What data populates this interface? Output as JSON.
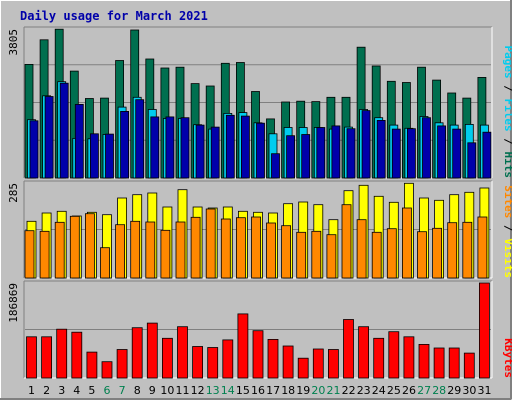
{
  "chart_data": [
    {
      "type": "bar",
      "title": "Daily usage for March 2021",
      "panel": "pages-files-hits",
      "ymax_label": "3805",
      "ylim": [
        0,
        3805
      ],
      "categories": [
        "1",
        "2",
        "3",
        "4",
        "5",
        "6",
        "7",
        "8",
        "9",
        "10",
        "11",
        "12",
        "13",
        "14",
        "15",
        "16",
        "17",
        "18",
        "19",
        "20",
        "21",
        "22",
        "23",
        "24",
        "25",
        "26",
        "27",
        "28",
        "29",
        "30",
        "31"
      ],
      "weekend_days": [
        "6",
        "7",
        "13",
        "14",
        "20",
        "21",
        "27",
        "28"
      ],
      "series": [
        {
          "name": "Hits",
          "color": "#006f4f",
          "values": [
            2900,
            3530,
            3800,
            2730,
            2030,
            2040,
            3000,
            3780,
            3040,
            2810,
            2830,
            2410,
            2350,
            2930,
            2950,
            2210,
            1510,
            1940,
            1960,
            1950,
            2060,
            2060,
            3340,
            2860,
            2470,
            2440,
            2830,
            2500,
            2170,
            2040,
            2570
          ]
        },
        {
          "name": "Files",
          "color": "#00ccee",
          "values": [
            1490,
            2100,
            2460,
            1010,
            1000,
            1110,
            1810,
            2060,
            1750,
            1520,
            1520,
            1360,
            1250,
            1650,
            1670,
            1410,
            1130,
            1290,
            1290,
            1290,
            1250,
            1300,
            1750,
            1540,
            1350,
            1270,
            1570,
            1410,
            1350,
            1370,
            1350
          ]
        },
        {
          "name": "Pages",
          "color": "#0000aa",
          "values": [
            1460,
            2080,
            2420,
            1880,
            1130,
            1120,
            1700,
            2000,
            1560,
            1560,
            1540,
            1350,
            1300,
            1600,
            1580,
            1400,
            620,
            1080,
            1110,
            1290,
            1330,
            1260,
            1720,
            1470,
            1250,
            1260,
            1540,
            1330,
            1250,
            900,
            1170
          ]
        }
      ],
      "ylabel_parts": [
        "Pages",
        "Files",
        "Hits"
      ]
    },
    {
      "type": "bar",
      "panel": "visits-sites",
      "ymax_label": "285",
      "ylim": [
        0,
        285
      ],
      "categories": [
        "1",
        "2",
        "3",
        "4",
        "5",
        "6",
        "7",
        "8",
        "9",
        "10",
        "11",
        "12",
        "13",
        "14",
        "15",
        "16",
        "17",
        "18",
        "19",
        "20",
        "21",
        "22",
        "23",
        "24",
        "25",
        "26",
        "27",
        "28",
        "29",
        "30",
        "31"
      ],
      "series": [
        {
          "name": "Visits",
          "color": "#ffff00",
          "values": [
            170,
            195,
            200,
            186,
            197,
            190,
            240,
            250,
            255,
            213,
            265,
            213,
            210,
            213,
            200,
            197,
            195,
            223,
            228,
            220,
            175,
            262,
            278,
            245,
            227,
            284,
            240,
            233,
            250,
            257,
            270
          ]
        },
        {
          "name": "Sites",
          "color": "#ff8800",
          "values": [
            142,
            140,
            167,
            185,
            193,
            91,
            160,
            170,
            168,
            143,
            168,
            182,
            207,
            177,
            181,
            183,
            165,
            157,
            137,
            140,
            130,
            220,
            175,
            137,
            148,
            210,
            139,
            149,
            166,
            167,
            183
          ]
        }
      ],
      "ylabel_parts": [
        "Sites",
        "Visits"
      ]
    },
    {
      "type": "bar",
      "panel": "kbytes",
      "ymax_label": "186869",
      "ylim": [
        0,
        186869
      ],
      "categories": [
        "1",
        "2",
        "3",
        "4",
        "5",
        "6",
        "7",
        "8",
        "9",
        "10",
        "11",
        "12",
        "13",
        "14",
        "15",
        "16",
        "17",
        "18",
        "19",
        "20",
        "21",
        "22",
        "23",
        "24",
        "25",
        "26",
        "27",
        "28",
        "29",
        "30",
        "31"
      ],
      "series": [
        {
          "name": "KBytes",
          "color": "#ff0000",
          "values": [
            81000,
            81000,
            96000,
            90000,
            51000,
            32000,
            56000,
            99000,
            108000,
            78000,
            101000,
            62000,
            60000,
            75000,
            126000,
            93000,
            76000,
            63000,
            39000,
            57000,
            56000,
            115000,
            101000,
            78000,
            91000,
            81000,
            66000,
            59000,
            59000,
            49000,
            186869
          ]
        }
      ],
      "ylabel_parts": [
        "KBytes"
      ]
    }
  ]
}
